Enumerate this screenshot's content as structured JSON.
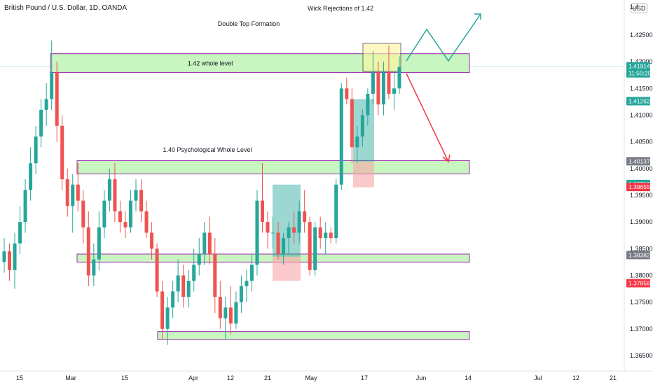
{
  "header": {
    "title": "British Pound / U.S. Dollar, 1D, OANDA",
    "currency_label": "USD"
  },
  "chart_data": {
    "type": "candlestick",
    "symbol": "GBPUSD",
    "timeframe": "1D",
    "broker": "OANDA",
    "ylim": [
      1.3625,
      1.456
    ],
    "y_ticks": [
      1.365,
      1.37,
      1.375,
      1.38,
      1.385,
      1.39,
      1.395,
      1.4,
      1.405,
      1.41,
      1.415,
      1.42,
      1.425
    ],
    "y_tick_labels": [
      "1.36500",
      "1.37000",
      "1.37500",
      "1.38000",
      "1.38500",
      "1.39000",
      "1.39500",
      "1.40000",
      "1.40500",
      "1.41000",
      "1.41500",
      "1.42000",
      "1.42500"
    ],
    "y_top_label": "1.4",
    "x_labels": [
      "15",
      "Mar",
      "15",
      "Apr",
      "12",
      "21",
      "May",
      "17",
      "Jun",
      "14",
      "Jul",
      "12",
      "21"
    ],
    "colors": {
      "up": "#26a69a",
      "down": "#ef5350",
      "zone_fill": "#c8f5c0",
      "zone_border": "#9c27b0",
      "up_arrow": "#26a69a",
      "down_arrow": "#f23645"
    },
    "candles": [
      {
        "o": 1.3825,
        "h": 1.387,
        "l": 1.3805,
        "c": 1.3845
      },
      {
        "o": 1.3845,
        "h": 1.386,
        "l": 1.379,
        "c": 1.381
      },
      {
        "o": 1.381,
        "h": 1.388,
        "l": 1.3775,
        "c": 1.386
      },
      {
        "o": 1.386,
        "h": 1.393,
        "l": 1.384,
        "c": 1.39
      },
      {
        "o": 1.39,
        "h": 1.398,
        "l": 1.388,
        "c": 1.396
      },
      {
        "o": 1.396,
        "h": 1.404,
        "l": 1.394,
        "c": 1.401
      },
      {
        "o": 1.401,
        "h": 1.408,
        "l": 1.399,
        "c": 1.406
      },
      {
        "o": 1.406,
        "h": 1.413,
        "l": 1.404,
        "c": 1.411
      },
      {
        "o": 1.411,
        "h": 1.416,
        "l": 1.408,
        "c": 1.413
      },
      {
        "o": 1.413,
        "h": 1.424,
        "l": 1.411,
        "c": 1.418
      },
      {
        "o": 1.418,
        "h": 1.42,
        "l": 1.405,
        "c": 1.408
      },
      {
        "o": 1.408,
        "h": 1.41,
        "l": 1.396,
        "c": 1.398
      },
      {
        "o": 1.398,
        "h": 1.4,
        "l": 1.391,
        "c": 1.393
      },
      {
        "o": 1.393,
        "h": 1.399,
        "l": 1.388,
        "c": 1.397
      },
      {
        "o": 1.397,
        "h": 1.401,
        "l": 1.392,
        "c": 1.394
      },
      {
        "o": 1.394,
        "h": 1.396,
        "l": 1.386,
        "c": 1.389
      },
      {
        "o": 1.389,
        "h": 1.392,
        "l": 1.378,
        "c": 1.38
      },
      {
        "o": 1.38,
        "h": 1.386,
        "l": 1.378,
        "c": 1.383
      },
      {
        "o": 1.383,
        "h": 1.392,
        "l": 1.381,
        "c": 1.389
      },
      {
        "o": 1.389,
        "h": 1.396,
        "l": 1.387,
        "c": 1.394
      },
      {
        "o": 1.394,
        "h": 1.4,
        "l": 1.392,
        "c": 1.398
      },
      {
        "o": 1.398,
        "h": 1.401,
        "l": 1.39,
        "c": 1.392
      },
      {
        "o": 1.392,
        "h": 1.394,
        "l": 1.388,
        "c": 1.39
      },
      {
        "o": 1.39,
        "h": 1.392,
        "l": 1.387,
        "c": 1.389
      },
      {
        "o": 1.389,
        "h": 1.396,
        "l": 1.388,
        "c": 1.394
      },
      {
        "o": 1.394,
        "h": 1.398,
        "l": 1.392,
        "c": 1.396
      },
      {
        "o": 1.396,
        "h": 1.398,
        "l": 1.39,
        "c": 1.392
      },
      {
        "o": 1.392,
        "h": 1.394,
        "l": 1.387,
        "c": 1.388
      },
      {
        "o": 1.388,
        "h": 1.39,
        "l": 1.383,
        "c": 1.385
      },
      {
        "o": 1.385,
        "h": 1.386,
        "l": 1.376,
        "c": 1.377
      },
      {
        "o": 1.377,
        "h": 1.379,
        "l": 1.368,
        "c": 1.37
      },
      {
        "o": 1.37,
        "h": 1.376,
        "l": 1.367,
        "c": 1.374
      },
      {
        "o": 1.374,
        "h": 1.379,
        "l": 1.372,
        "c": 1.377
      },
      {
        "o": 1.377,
        "h": 1.383,
        "l": 1.375,
        "c": 1.38
      },
      {
        "o": 1.38,
        "h": 1.382,
        "l": 1.374,
        "c": 1.376
      },
      {
        "o": 1.376,
        "h": 1.381,
        "l": 1.374,
        "c": 1.379
      },
      {
        "o": 1.379,
        "h": 1.385,
        "l": 1.377,
        "c": 1.382
      },
      {
        "o": 1.382,
        "h": 1.387,
        "l": 1.38,
        "c": 1.384
      },
      {
        "o": 1.384,
        "h": 1.39,
        "l": 1.382,
        "c": 1.388
      },
      {
        "o": 1.388,
        "h": 1.391,
        "l": 1.382,
        "c": 1.384
      },
      {
        "o": 1.384,
        "h": 1.387,
        "l": 1.373,
        "c": 1.376
      },
      {
        "o": 1.376,
        "h": 1.379,
        "l": 1.37,
        "c": 1.372
      },
      {
        "o": 1.372,
        "h": 1.376,
        "l": 1.368,
        "c": 1.374
      },
      {
        "o": 1.374,
        "h": 1.378,
        "l": 1.369,
        "c": 1.371
      },
      {
        "o": 1.371,
        "h": 1.377,
        "l": 1.37,
        "c": 1.375
      },
      {
        "o": 1.375,
        "h": 1.38,
        "l": 1.373,
        "c": 1.378
      },
      {
        "o": 1.378,
        "h": 1.381,
        "l": 1.375,
        "c": 1.379
      },
      {
        "o": 1.379,
        "h": 1.384,
        "l": 1.377,
        "c": 1.382
      },
      {
        "o": 1.382,
        "h": 1.396,
        "l": 1.38,
        "c": 1.394
      },
      {
        "o": 1.394,
        "h": 1.401,
        "l": 1.388,
        "c": 1.39
      },
      {
        "o": 1.39,
        "h": 1.392,
        "l": 1.385,
        "c": 1.388
      },
      {
        "o": 1.388,
        "h": 1.391,
        "l": 1.385,
        "c": 1.388
      },
      {
        "o": 1.388,
        "h": 1.39,
        "l": 1.383,
        "c": 1.384
      },
      {
        "o": 1.384,
        "h": 1.388,
        "l": 1.382,
        "c": 1.387
      },
      {
        "o": 1.387,
        "h": 1.39,
        "l": 1.384,
        "c": 1.389
      },
      {
        "o": 1.389,
        "h": 1.392,
        "l": 1.386,
        "c": 1.388
      },
      {
        "o": 1.388,
        "h": 1.394,
        "l": 1.386,
        "c": 1.392
      },
      {
        "o": 1.392,
        "h": 1.396,
        "l": 1.388,
        "c": 1.39
      },
      {
        "o": 1.39,
        "h": 1.391,
        "l": 1.38,
        "c": 1.381
      },
      {
        "o": 1.381,
        "h": 1.39,
        "l": 1.38,
        "c": 1.389
      },
      {
        "o": 1.389,
        "h": 1.391,
        "l": 1.385,
        "c": 1.387
      },
      {
        "o": 1.387,
        "h": 1.39,
        "l": 1.384,
        "c": 1.388
      },
      {
        "o": 1.388,
        "h": 1.389,
        "l": 1.386,
        "c": 1.387
      },
      {
        "o": 1.387,
        "h": 1.398,
        "l": 1.386,
        "c": 1.397
      },
      {
        "o": 1.397,
        "h": 1.416,
        "l": 1.396,
        "c": 1.415
      },
      {
        "o": 1.415,
        "h": 1.417,
        "l": 1.412,
        "c": 1.413
      },
      {
        "o": 1.413,
        "h": 1.415,
        "l": 1.401,
        "c": 1.404
      },
      {
        "o": 1.404,
        "h": 1.408,
        "l": 1.401,
        "c": 1.406
      },
      {
        "o": 1.406,
        "h": 1.411,
        "l": 1.404,
        "c": 1.41
      },
      {
        "o": 1.41,
        "h": 1.415,
        "l": 1.408,
        "c": 1.414
      },
      {
        "o": 1.414,
        "h": 1.422,
        "l": 1.412,
        "c": 1.418
      },
      {
        "o": 1.418,
        "h": 1.42,
        "l": 1.41,
        "c": 1.412
      },
      {
        "o": 1.412,
        "h": 1.42,
        "l": 1.41,
        "c": 1.418
      },
      {
        "o": 1.418,
        "h": 1.423,
        "l": 1.413,
        "c": 1.414
      },
      {
        "o": 1.414,
        "h": 1.418,
        "l": 1.411,
        "c": 1.415
      },
      {
        "o": 1.415,
        "h": 1.421,
        "l": 1.414,
        "c": 1.419
      }
    ],
    "zones": [
      {
        "label": "Double Top Formation / 1.42 whole level",
        "low": 1.418,
        "high": 1.4215
      },
      {
        "label": "1.40 Psychological Whole Level",
        "low": 1.399,
        "high": 1.4015
      },
      {
        "label": "",
        "low": 1.3825,
        "high": 1.384
      },
      {
        "label": "",
        "low": 1.368,
        "high": 1.3695
      }
    ],
    "annotations": [
      {
        "text": "Double Top Formation"
      },
      {
        "text": "1.42 whole level"
      },
      {
        "text": "1.40 Psychological Whole Level"
      },
      {
        "text": "Wick Rejections of 1.42"
      }
    ],
    "price_labels": [
      {
        "text": "1.41914",
        "sub": "11:50:25",
        "value": 1.41914,
        "color": "#26a69a"
      },
      {
        "text": "1.41262",
        "value": 1.41262,
        "color": "#26a69a"
      },
      {
        "text": "1.40137",
        "value": 1.40137,
        "color": "#787b86"
      },
      {
        "text": "1.39712",
        "value": 1.39712,
        "color": "#26a69a"
      },
      {
        "text": "1.39655",
        "value": 1.39655,
        "color": "#f23645"
      },
      {
        "text": "1.38382",
        "value": 1.38382,
        "color": "#787b86"
      },
      {
        "text": "1.37856",
        "value": 1.37856,
        "color": "#f23645"
      }
    ]
  }
}
